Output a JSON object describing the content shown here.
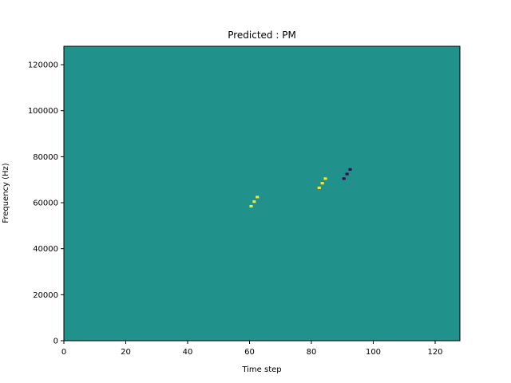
{
  "chart_data": {
    "type": "heatmap",
    "title": "Predicted : PM",
    "xlabel": "Time step",
    "ylabel": "Frequency (Hz)",
    "xlim": [
      0,
      128
    ],
    "ylim": [
      0,
      128000
    ],
    "xticks": [
      0,
      20,
      40,
      60,
      80,
      100,
      120
    ],
    "yticks": [
      0,
      20000,
      40000,
      60000,
      80000,
      100000,
      120000
    ],
    "n_time": 128,
    "n_freq": 128,
    "colors": {
      "background": "#21918c",
      "high": "#fde725",
      "low": "#440154"
    },
    "cells": [
      {
        "x": 60,
        "y": 58,
        "v": 1
      },
      {
        "x": 61,
        "y": 60,
        "v": 1
      },
      {
        "x": 62,
        "y": 62,
        "v": 1
      },
      {
        "x": 82,
        "y": 66,
        "v": 1
      },
      {
        "x": 83,
        "y": 68,
        "v": 1
      },
      {
        "x": 84,
        "y": 70,
        "v": 1
      },
      {
        "x": 90,
        "y": 70,
        "v": -1
      },
      {
        "x": 91,
        "y": 72,
        "v": -1
      },
      {
        "x": 92,
        "y": 74,
        "v": -1
      }
    ]
  }
}
